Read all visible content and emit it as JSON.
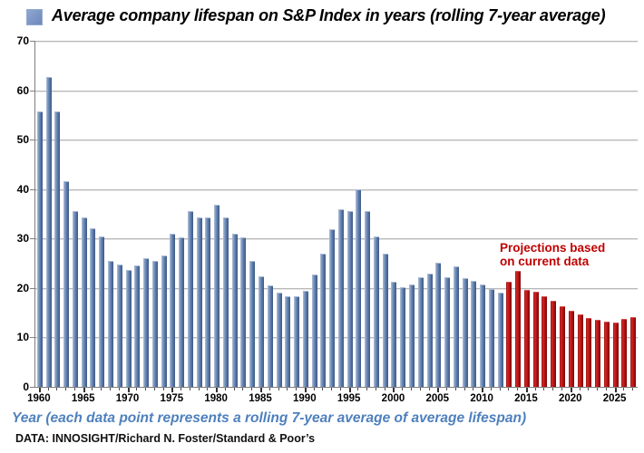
{
  "title": {
    "text": "Average company lifespan on S&P Index in years (rolling 7-year average)",
    "swatch_color": "#7b94c3"
  },
  "annotation": {
    "line1": "Projections based",
    "line2": "on current data",
    "color": "#c00000"
  },
  "footer": {
    "x_axis_label": "Year (each data point represents a rolling 7-year average of average lifespan)",
    "source": "DATA: INNOSIGHT/Richard N. Foster/Standard & Poor’s"
  },
  "colors": {
    "historical_bar": "#54739f",
    "projection_bar": "#b00b0b",
    "grid": "#b8b8b8",
    "axis_label_text": "#4e80bd"
  },
  "chart_data": {
    "type": "bar",
    "title": "Average company lifespan on S&P Index in years (rolling 7-year average)",
    "xlabel": "Year (each data point represents a rolling 7-year average of average lifespan)",
    "ylabel": "",
    "ylim": [
      0,
      70
    ],
    "yticks": [
      0,
      10,
      20,
      30,
      40,
      50,
      60,
      70
    ],
    "grid": true,
    "x_start": 1960,
    "x_end": 2027,
    "xticks_labeled": [
      1960,
      1965,
      1970,
      1975,
      1980,
      1985,
      1990,
      1995,
      2000,
      2005,
      2010,
      2015,
      2020,
      2025
    ],
    "series": [
      {
        "name": "historical",
        "color": "#54739f",
        "start_year": 1960,
        "values": [
          55.5,
          62.4,
          55.5,
          41.4,
          35.4,
          34.0,
          31.8,
          30.2,
          25.3,
          24.5,
          23.5,
          24.4,
          25.8,
          25.2,
          26.4,
          30.8,
          30.0,
          35.4,
          34.0,
          34.0,
          36.6,
          34.0,
          30.8,
          30.0,
          25.3,
          22.2,
          20.3,
          18.8,
          18.2,
          18.2,
          19.3,
          22.5,
          26.8,
          31.7,
          35.7,
          35.3,
          39.8,
          35.3,
          30.2,
          26.8,
          21.0,
          20.0,
          20.5,
          22.0,
          22.7,
          24.9,
          22.0,
          24.2,
          21.8,
          21.2,
          20.5,
          19.7,
          18.9
        ]
      },
      {
        "name": "projection",
        "color": "#b00b0b",
        "start_year": 2013,
        "values": [
          21.0,
          23.2,
          19.4,
          19.0,
          18.2,
          17.3,
          16.2,
          15.3,
          14.5,
          13.7,
          13.3,
          13.0,
          12.8,
          13.6,
          13.9
        ]
      }
    ]
  }
}
